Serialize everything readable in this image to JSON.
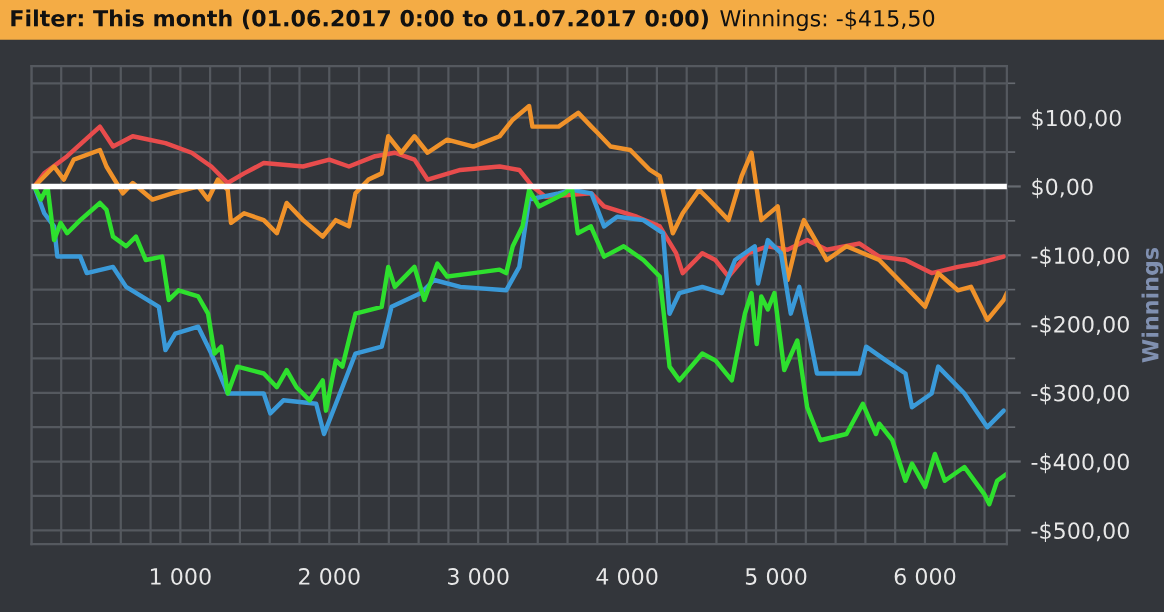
{
  "chart_data": {
    "type": "line",
    "title": "Filter: This month (01.06.2017 0:00 to 01.07.2017 0:00)",
    "subtitle": "Winnings: -$415,50",
    "ylabel": "Winnings",
    "xlim": [
      0,
      6550
    ],
    "ylim": [
      -520,
      175
    ],
    "xticks": [
      {
        "value": 1000,
        "label": "1 000"
      },
      {
        "value": 2000,
        "label": "2 000"
      },
      {
        "value": 3000,
        "label": "3 000"
      },
      {
        "value": 4000,
        "label": "4 000"
      },
      {
        "value": 5000,
        "label": "5 000"
      },
      {
        "value": 6000,
        "label": "6 000"
      }
    ],
    "yticks": [
      {
        "value": 100,
        "label": "$100,00"
      },
      {
        "value": 0,
        "label": "$0,00"
      },
      {
        "value": -100,
        "label": "-$100,00"
      },
      {
        "value": -200,
        "label": "-$200,00"
      },
      {
        "value": -300,
        "label": "-$300,00"
      },
      {
        "value": -400,
        "label": "-$400,00"
      },
      {
        "value": -500,
        "label": "-$500,00"
      }
    ],
    "grid": true,
    "line_style": "solid",
    "ref_lines": [
      {
        "axis": "y",
        "value": 0,
        "color": "#ffffff"
      }
    ],
    "series": [
      {
        "color": "#e84c4c",
        "x": [
          20,
          86,
          240,
          460,
          548,
          680,
          900,
          1076,
          1208,
          1318,
          1428,
          1560,
          1824,
          2000,
          2132,
          2308,
          2440,
          2572,
          2660,
          2880,
          3144,
          3276,
          3364,
          3452,
          3760,
          3845,
          4065,
          4219,
          4329,
          4373,
          4505,
          4593,
          4681,
          4813,
          4945,
          5077,
          5209,
          5341,
          5561,
          5693,
          5869,
          6045,
          6221,
          6353,
          6529
        ],
        "values": [
          0,
          19,
          44,
          87,
          58,
          73,
          63,
          49,
          29,
          5,
          19,
          34,
          29,
          39,
          29,
          44,
          49,
          39,
          10,
          24,
          29,
          24,
          0,
          -15,
          -10,
          -29,
          -44,
          -58,
          -97,
          -126,
          -97,
          -107,
          -131,
          -97,
          -87,
          -92,
          -78,
          -92,
          -83,
          -102,
          -107,
          -126,
          -117,
          -112,
          -102
        ]
      },
      {
        "color": "#f0922a",
        "x": [
          20,
          152,
          218,
          284,
          460,
          504,
          614,
          680,
          812,
          944,
          1120,
          1186,
          1252,
          1318,
          1340,
          1428,
          1560,
          1648,
          1714,
          1824,
          1956,
          2044,
          2132,
          2176,
          2264,
          2352,
          2396,
          2484,
          2572,
          2660,
          2792,
          2968,
          3144,
          3232,
          3342,
          3364,
          3540,
          3672,
          3760,
          3801,
          3889,
          4021,
          4153,
          4219,
          4307,
          4373,
          4483,
          4549,
          4681,
          4769,
          4835,
          4901,
          5011,
          5077,
          5143,
          5187,
          5341,
          5473,
          5693,
          5825,
          6001,
          6089,
          6221,
          6309,
          6419,
          6529,
          6550
        ],
        "values": [
          0,
          29,
          10,
          39,
          53,
          29,
          -10,
          5,
          -19,
          -10,
          0,
          -19,
          10,
          -5,
          -53,
          -39,
          -49,
          -68,
          -24,
          -49,
          -73,
          -49,
          -58,
          -10,
          10,
          19,
          73,
          49,
          73,
          49,
          68,
          58,
          73,
          97,
          117,
          87,
          87,
          107,
          87,
          78,
          58,
          53,
          24,
          15,
          -68,
          -39,
          -5,
          -19,
          -49,
          15,
          49,
          -49,
          -29,
          -136,
          -78,
          -49,
          -107,
          -87,
          -107,
          -136,
          -175,
          -126,
          -151,
          -146,
          -194,
          -165,
          -155
        ]
      },
      {
        "color": "#3a9ad9",
        "x": [
          20,
          86,
          152,
          174,
          328,
          372,
          548,
          636,
          856,
          900,
          966,
          1120,
          1208,
          1318,
          1560,
          1604,
          1692,
          1912,
          1965,
          2088,
          2176,
          2352,
          2418,
          2616,
          2704,
          2880,
          3188,
          3276,
          3342,
          3540,
          3628,
          3760,
          3845,
          3933,
          4109,
          4241,
          4285,
          4351,
          4505,
          4637,
          4725,
          4857,
          4879,
          4945,
          5033,
          5099,
          5156,
          5231,
          5275,
          5561,
          5605,
          5737,
          5869,
          5913,
          6045,
          6089,
          6265,
          6419,
          6529
        ],
        "values": [
          0,
          -39,
          -58,
          -102,
          -102,
          -126,
          -117,
          -146,
          -175,
          -238,
          -214,
          -204,
          -243,
          -301,
          -301,
          -330,
          -311,
          -316,
          -360,
          -292,
          -243,
          -233,
          -175,
          -155,
          -136,
          -146,
          -151,
          -117,
          -19,
          -10,
          -5,
          -10,
          -58,
          -44,
          -49,
          -68,
          -185,
          -155,
          -146,
          -155,
          -107,
          -87,
          -141,
          -78,
          -97,
          -185,
          -146,
          -224,
          -272,
          -272,
          -233,
          -253,
          -272,
          -321,
          -301,
          -262,
          -301,
          -350,
          -326
        ]
      },
      {
        "color": "#2ee02e",
        "x": [
          20,
          64,
          108,
          152,
          196,
          240,
          328,
          460,
          504,
          548,
          636,
          702,
          768,
          878,
          922,
          988,
          1120,
          1186,
          1230,
          1274,
          1318,
          1384,
          1560,
          1648,
          1714,
          1780,
          1868,
          1956,
          1978,
          2044,
          2088,
          2176,
          2352,
          2396,
          2440,
          2572,
          2638,
          2726,
          2792,
          2968,
          3144,
          3188,
          3232,
          3298,
          3342,
          3408,
          3584,
          3628,
          3669,
          3757,
          3845,
          3977,
          4109,
          4219,
          4285,
          4351,
          4505,
          4593,
          4703,
          4791,
          4835,
          4870,
          4901,
          4945,
          4989,
          5055,
          5143,
          5209,
          5297,
          5473,
          5583,
          5671,
          5693,
          5781,
          5869,
          5913,
          6001,
          6067,
          6133,
          6265,
          6397,
          6432,
          6485,
          6550
        ],
        "values": [
          0,
          -19,
          0,
          -78,
          -53,
          -68,
          -49,
          -24,
          -34,
          -73,
          -87,
          -73,
          -107,
          -102,
          -165,
          -151,
          -160,
          -185,
          -243,
          -233,
          -301,
          -262,
          -272,
          -292,
          -267,
          -292,
          -311,
          -282,
          -326,
          -253,
          -262,
          -185,
          -175,
          -117,
          -146,
          -117,
          -165,
          -112,
          -131,
          -126,
          -121,
          -126,
          -87,
          -58,
          -5,
          -29,
          -10,
          0,
          -68,
          -58,
          -102,
          -87,
          -107,
          -131,
          -262,
          -282,
          -243,
          -253,
          -282,
          -185,
          -155,
          -229,
          -160,
          -179,
          -155,
          -267,
          -224,
          -321,
          -369,
          -360,
          -316,
          -360,
          -345,
          -369,
          -428,
          -403,
          -437,
          -389,
          -428,
          -408,
          -447,
          -462,
          -428,
          -418
        ]
      }
    ]
  }
}
